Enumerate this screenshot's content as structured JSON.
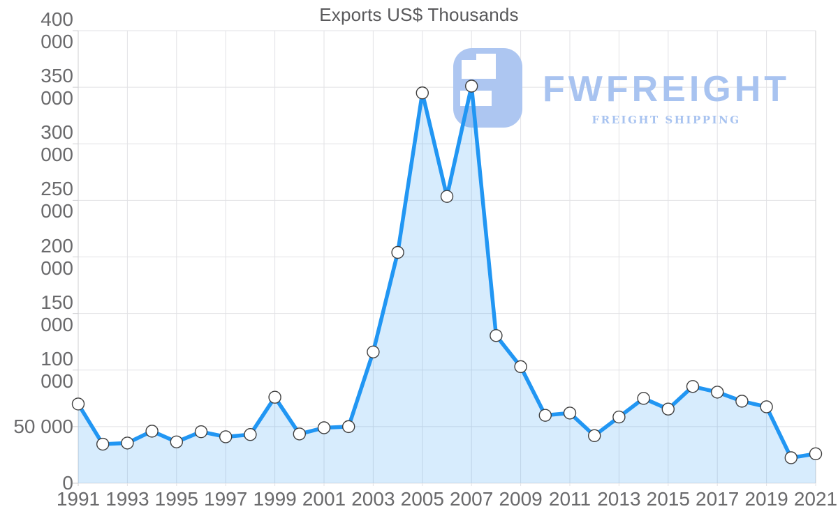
{
  "chart_data": {
    "type": "area",
    "title": "Exports US$ Thousands",
    "x": [
      1991,
      1992,
      1993,
      1994,
      1995,
      1996,
      1997,
      1998,
      1999,
      2000,
      2001,
      2002,
      2003,
      2004,
      2005,
      2006,
      2007,
      2008,
      2009,
      2010,
      2011,
      2012,
      2013,
      2014,
      2015,
      2016,
      2017,
      2018,
      2019,
      2020,
      2021
    ],
    "values": [
      70000,
      34500,
      35500,
      46000,
      36500,
      45500,
      41000,
      43000,
      76000,
      43500,
      49000,
      50000,
      116000,
      204000,
      345000,
      253500,
      351000,
      130500,
      103000,
      60000,
      62000,
      42000,
      58500,
      75000,
      65500,
      85500,
      80500,
      72500,
      67500,
      22500,
      26000
    ],
    "xlabel": "",
    "ylabel": "",
    "ylim": [
      0,
      400000
    ],
    "ytick_step": 50000,
    "xtick_labels": [
      "1991",
      "1993",
      "1995",
      "1997",
      "1999",
      "2001",
      "2003",
      "2005",
      "2007",
      "2009",
      "2011",
      "2013",
      "2015",
      "2017",
      "2019",
      "2021"
    ],
    "ytick_labels": [
      "0",
      "50 000",
      "100 000",
      "150 000",
      "200 000",
      "250 000",
      "300 000",
      "350 000",
      "400 000"
    ],
    "grid": true,
    "legend": "none"
  },
  "logo": {
    "brand": "FWFREIGHT",
    "tagline": "FREIGHT SHIPPING"
  },
  "colors": {
    "line": "#2196f3",
    "fill_rgba": "rgba(33,150,243,0.18)",
    "marker_fill": "#ffffff",
    "marker_stroke": "#3f3f3f",
    "grid": "#e2e2e5",
    "axis": "#cfcfd2",
    "logo": "#adc6f1",
    "title_text": "#59595b",
    "tick_text": "#6a6a6c",
    "background": "#ffffff"
  }
}
